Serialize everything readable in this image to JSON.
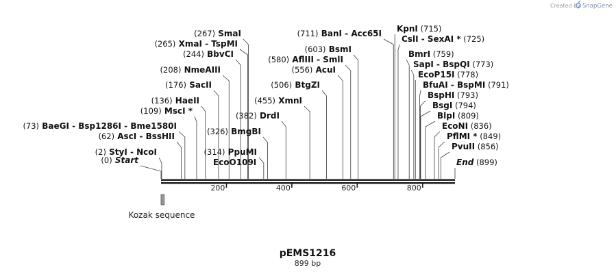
{
  "branding": {
    "prefix": "Created by",
    "name": "SnapGene",
    "accent": "#6d8fc4"
  },
  "plasmid": {
    "name": "pEMS1216",
    "length_label": "899 bp"
  },
  "axis": {
    "length": 899,
    "ticks": [
      200,
      400,
      600,
      800
    ]
  },
  "features": [
    {
      "name": "Kozak sequence",
      "start": 1,
      "end": 11,
      "color": "#9a9a9a"
    }
  ],
  "left_labels": [
    {
      "pos": "(0)",
      "parts": [
        {
          "t": "Start",
          "italic": true
        }
      ],
      "loc": 0
    },
    {
      "pos": "(2)",
      "parts": [
        {
          "t": "StyI"
        },
        {
          "t": "NcoI"
        }
      ],
      "loc": 2
    },
    {
      "pos": "(62)",
      "parts": [
        {
          "t": "AscI"
        },
        {
          "t": "BssHII"
        }
      ],
      "loc": 62
    },
    {
      "pos": "(73)",
      "parts": [
        {
          "t": "BaeGI"
        },
        {
          "t": "Bsp1286I"
        },
        {
          "t": "Bme1580I"
        }
      ],
      "loc": 73
    },
    {
      "pos": "(109)",
      "parts": [
        {
          "t": "MscI *"
        }
      ],
      "loc": 109
    },
    {
      "pos": "(136)",
      "parts": [
        {
          "t": "HaeII"
        }
      ],
      "loc": 136
    },
    {
      "pos": "(176)",
      "parts": [
        {
          "t": "SacII"
        }
      ],
      "loc": 176
    },
    {
      "pos": "(208)",
      "parts": [
        {
          "t": "NmeAIII"
        }
      ],
      "loc": 208
    },
    {
      "pos": "(244)",
      "parts": [
        {
          "t": "BbvCI"
        }
      ],
      "loc": 244
    },
    {
      "pos": "(265)",
      "parts": [
        {
          "t": "XmaI"
        },
        {
          "t": "TspMI"
        }
      ],
      "loc": 265
    },
    {
      "pos": "(267)",
      "parts": [
        {
          "t": "SmaI"
        }
      ],
      "loc": 267
    },
    {
      "pos": "(314)",
      "parts": [
        {
          "t": "PpuMI"
        }
      ],
      "loc": 314
    },
    {
      "pos": "(326)",
      "parts": [
        {
          "t": "BmgBI"
        }
      ],
      "loc": 326
    },
    {
      "pos": "(382)",
      "parts": [
        {
          "t": "DrdI"
        }
      ],
      "loc": 382
    },
    {
      "pos": "(455)",
      "parts": [
        {
          "t": "XmnI"
        }
      ],
      "loc": 455
    },
    {
      "pos": "(506)",
      "parts": [
        {
          "t": "BtgZI"
        }
      ],
      "loc": 506
    },
    {
      "pos": "(556)",
      "parts": [
        {
          "t": "AcuI"
        }
      ],
      "loc": 556
    },
    {
      "pos": "(580)",
      "parts": [
        {
          "t": "AflIII"
        },
        {
          "t": "SmlI"
        }
      ],
      "loc": 580
    },
    {
      "pos": "(603)",
      "parts": [
        {
          "t": "BsmI"
        }
      ],
      "loc": 603
    },
    {
      "pos": "(711)",
      "parts": [
        {
          "t": "BanI"
        },
        {
          "t": "Acc65I"
        }
      ],
      "loc": 711
    }
  ],
  "extra_labels": [
    {
      "parts": [
        {
          "t": "EcoO109I"
        }
      ],
      "loc": 314
    }
  ],
  "right_labels": [
    {
      "parts": [
        {
          "t": "KpnI"
        }
      ],
      "pos": "(715)",
      "loc": 715
    },
    {
      "parts": [
        {
          "t": "CslI"
        },
        {
          "t": "SexAI *"
        }
      ],
      "pos": "(725)",
      "loc": 725
    },
    {
      "parts": [
        {
          "t": "BmrI"
        }
      ],
      "pos": "(759)",
      "loc": 759
    },
    {
      "parts": [
        {
          "t": "SapI"
        },
        {
          "t": "BspQI"
        }
      ],
      "pos": "(773)",
      "loc": 773
    },
    {
      "parts": [
        {
          "t": "EcoP15I"
        }
      ],
      "pos": "(778)",
      "loc": 778
    },
    {
      "parts": [
        {
          "t": "BfuAI"
        },
        {
          "t": "BspMI"
        }
      ],
      "pos": "(791)",
      "loc": 791
    },
    {
      "parts": [
        {
          "t": "BspHI"
        }
      ],
      "pos": "(793)",
      "loc": 793
    },
    {
      "parts": [
        {
          "t": "BsgI"
        }
      ],
      "pos": "(794)",
      "loc": 794
    },
    {
      "parts": [
        {
          "t": "BlpI"
        }
      ],
      "pos": "(809)",
      "loc": 809
    },
    {
      "parts": [
        {
          "t": "EcoNI"
        }
      ],
      "pos": "(836)",
      "loc": 836
    },
    {
      "parts": [
        {
          "t": "PflMI *"
        }
      ],
      "pos": "(849)",
      "loc": 849
    },
    {
      "parts": [
        {
          "t": "PvuII"
        }
      ],
      "pos": "(856)",
      "loc": 856
    },
    {
      "parts": [
        {
          "t": "End",
          "italic": true
        }
      ],
      "pos": "(899)",
      "loc": 899
    }
  ]
}
